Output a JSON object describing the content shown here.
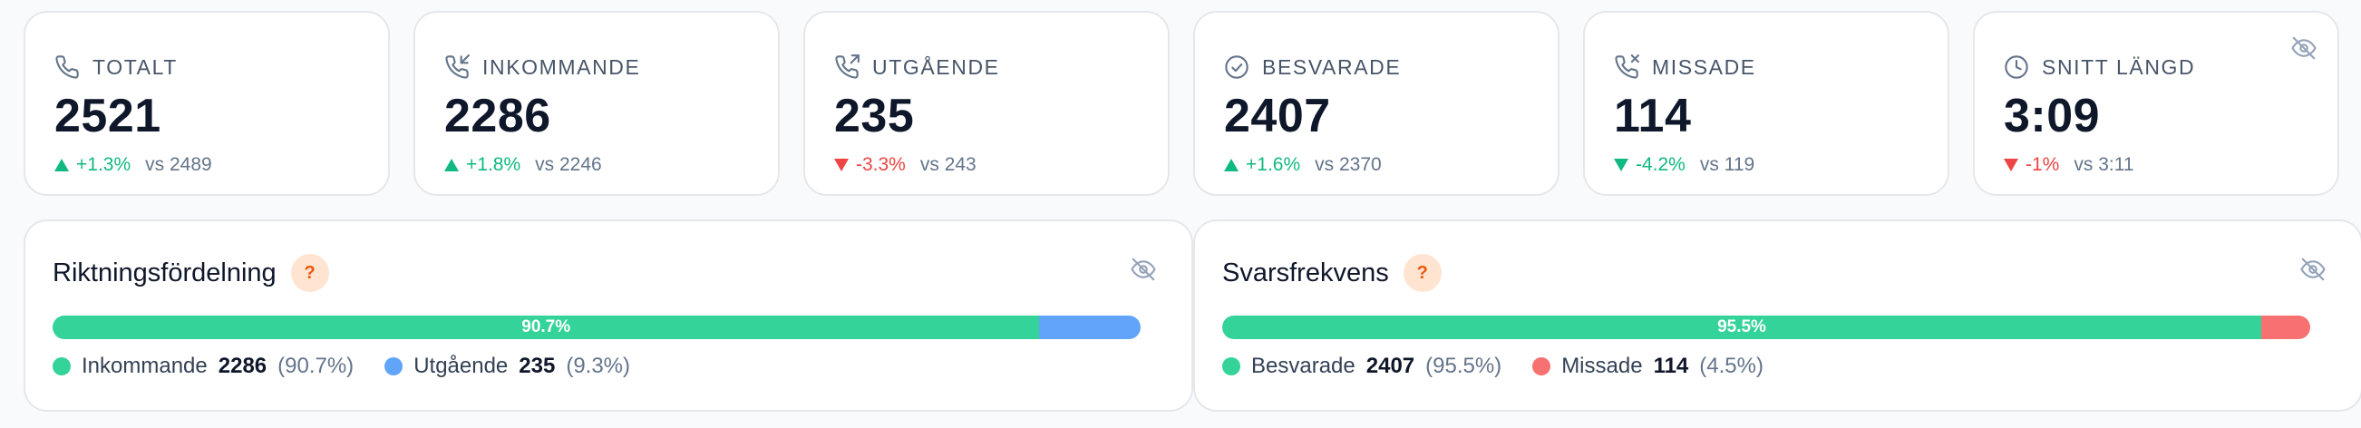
{
  "stats": [
    {
      "key": "totalt",
      "label": "TOTALT",
      "icon": "phone-icon",
      "value": "2521",
      "direction": "up",
      "delta": "+1.3%",
      "vs": "vs 2489"
    },
    {
      "key": "inkommande",
      "label": "INKOMMANDE",
      "icon": "phone-incoming-icon",
      "value": "2286",
      "direction": "up",
      "delta": "+1.8%",
      "vs": "vs 2246"
    },
    {
      "key": "utgaende",
      "label": "UTGÅENDE",
      "icon": "phone-outgoing-icon",
      "value": "235",
      "direction": "down",
      "delta": "-3.3%",
      "vs": "vs 243"
    },
    {
      "key": "besvarade",
      "label": "BESVARADE",
      "icon": "check-circle-icon",
      "value": "2407",
      "direction": "up",
      "delta": "+1.6%",
      "vs": "vs 2370"
    },
    {
      "key": "missade",
      "label": "MISSADE",
      "icon": "phone-missed-icon",
      "value": "114",
      "direction": "down",
      "delta": "-4.2%",
      "vs": "vs 119",
      "delta_color": "#10b981"
    },
    {
      "key": "snitt",
      "label": "SNITT LÄNGD",
      "icon": "clock-icon",
      "value": "3:09",
      "direction": "down",
      "delta": "-1%",
      "vs": "vs 3:11"
    }
  ],
  "direction_card": {
    "title": "Riktningsfördelning",
    "help": "?",
    "bar_label": "90.7%",
    "segments": [
      {
        "name": "Inkommande",
        "count": "2286",
        "pct": "(90.7%)",
        "fraction": 0.907,
        "color": "#34d399"
      },
      {
        "name": "Utgående",
        "count": "235",
        "pct": "(9.3%)",
        "fraction": 0.093,
        "color": "#60a5fa"
      }
    ]
  },
  "answer_card": {
    "title": "Svarsfrekvens",
    "help": "?",
    "bar_label": "95.5%",
    "segments": [
      {
        "name": "Besvarade",
        "count": "2407",
        "pct": "(95.5%)",
        "fraction": 0.955,
        "color": "#34d399"
      },
      {
        "name": "Missade",
        "count": "114",
        "pct": "(4.5%)",
        "fraction": 0.045,
        "color": "#f87171"
      }
    ]
  },
  "colors": {
    "positive": "#10b981",
    "negative": "#ef4444",
    "icon": "#64748b"
  }
}
